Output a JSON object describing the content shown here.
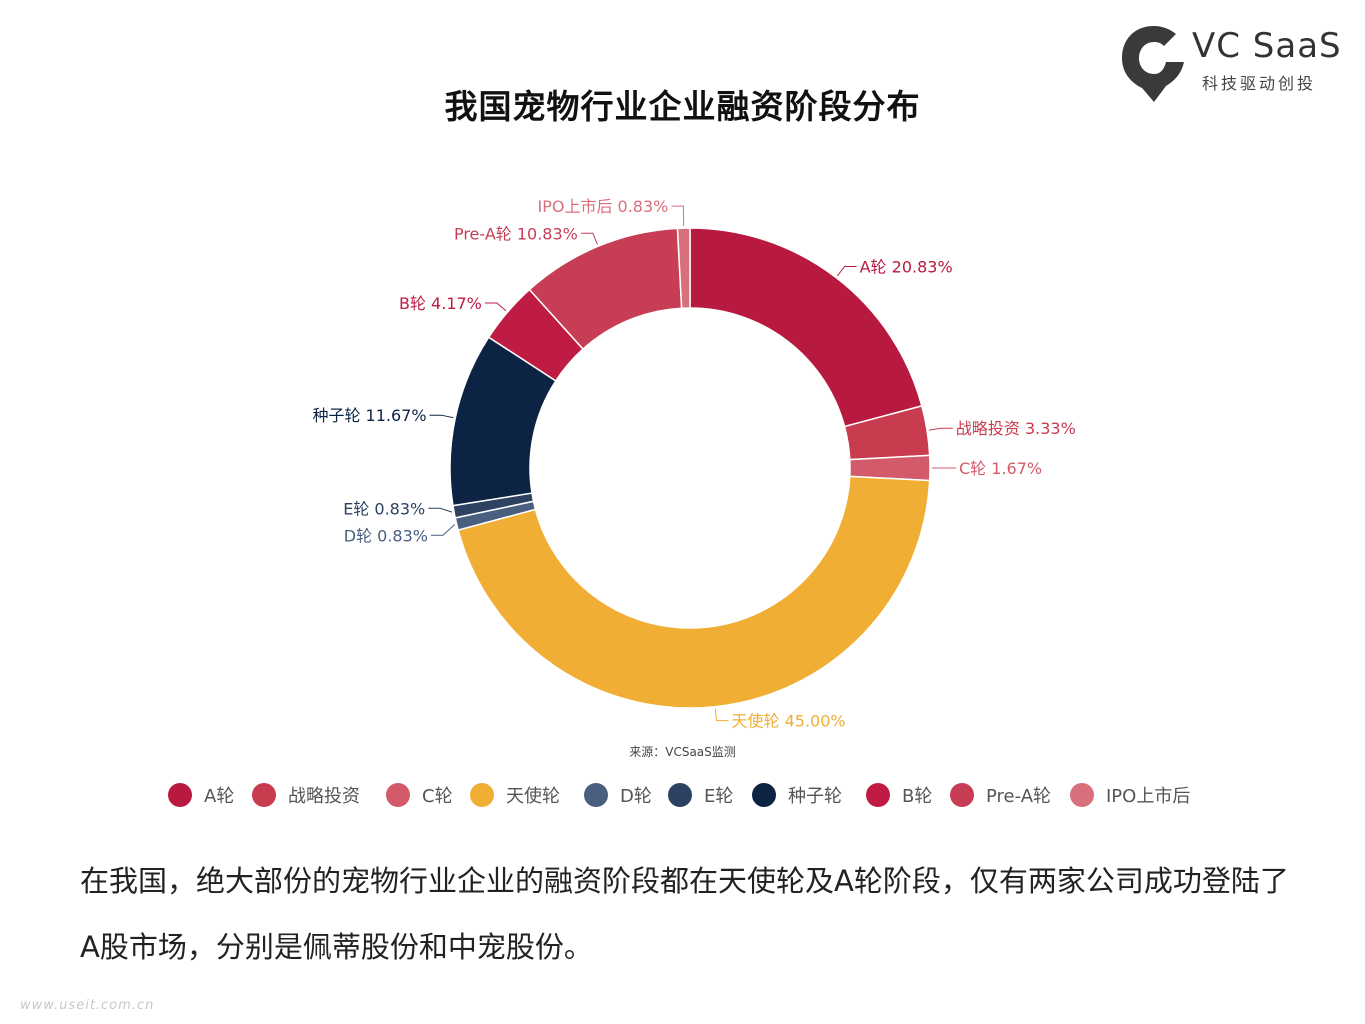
{
  "brand": {
    "name": "VC SaaS",
    "slogan": "科技驱动创投",
    "icon": "vc-saas-logo-icon",
    "color": "#333333"
  },
  "title": "我国宠物行业企业融资阶段分布",
  "source": "来源：VCSaaS监测",
  "body_text": "在我国，绝大部份的宠物行业企业的融资阶段都在天使轮及A轮阶段，仅有两家公司成功登陆了A股市场，分别是佩蒂股份和中宠股份。",
  "watermark": "www.useit.com.cn",
  "chart_data": {
    "type": "pie",
    "variant": "donut",
    "title": "我国宠物行业企业融资阶段分布",
    "legend_position": "bottom",
    "series": [
      {
        "name": "A轮",
        "value": 20.83,
        "label": "A轮 20.83%",
        "color": "#b8193f"
      },
      {
        "name": "战略投资",
        "value": 3.33,
        "label": "战略投资 3.33%",
        "color": "#c93b4f"
      },
      {
        "name": "C轮",
        "value": 1.67,
        "label": "C轮 1.67%",
        "color": "#d35a6b"
      },
      {
        "name": "天使轮",
        "value": 45.0,
        "label": "天使轮 45.00%",
        "color": "#f0ae35"
      },
      {
        "name": "D轮",
        "value": 0.83,
        "label": "D轮 0.83%",
        "color": "#4a5f80"
      },
      {
        "name": "E轮",
        "value": 0.83,
        "label": "E轮 0.83%",
        "color": "#2c4260"
      },
      {
        "name": "种子轮",
        "value": 11.67,
        "label": "种子轮 11.67%",
        "color": "#0c2344"
      },
      {
        "name": "B轮",
        "value": 4.17,
        "label": "B轮 4.17%",
        "color": "#be1c42"
      },
      {
        "name": "Pre-A轮",
        "value": 10.83,
        "label": "Pre-A轮 10.83%",
        "color": "#c63d55"
      },
      {
        "name": "IPO上市后",
        "value": 0.83,
        "label": "IPO上市后 0.83%",
        "color": "#d86f7c"
      }
    ]
  }
}
